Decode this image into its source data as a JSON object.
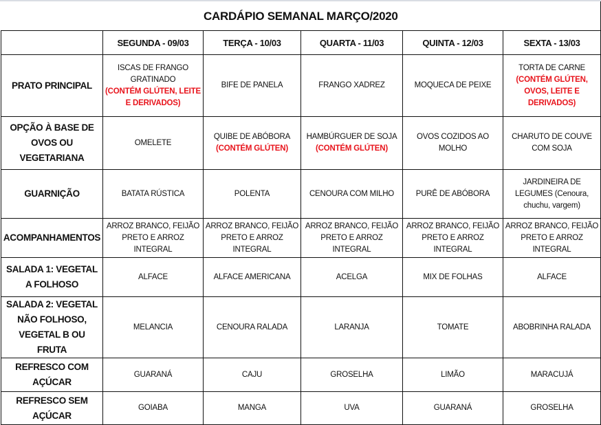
{
  "title": "CARDÁPIO SEMANAL MARÇO/2020",
  "days": [
    "SEGUNDA - 09/03",
    "TERÇA - 10/03",
    "QUARTA - 11/03",
    "QUINTA - 12/03",
    "SEXTA - 13/03"
  ],
  "colors": {
    "allergen_note": "#e8141c",
    "border": "#111111"
  },
  "rows": [
    {
      "label": "PRATO PRINCIPAL",
      "cells": [
        {
          "text": "ISCAS DE FRANGO GRATINADO",
          "note": "(CONTÉM GLÚTEN, LEITE E DERIVADOS)"
        },
        {
          "text": "BIFE DE PANELA"
        },
        {
          "text": "FRANGO XADREZ"
        },
        {
          "text": "MOQUECA DE PEIXE"
        },
        {
          "text": "TORTA DE CARNE",
          "note": "(CONTÉM GLÚTEN, OVOS, LEITE E DERIVADOS)"
        }
      ]
    },
    {
      "label": "OPÇÃO À BASE DE OVOS OU VEGETARIANA",
      "cells": [
        {
          "text": "OMELETE"
        },
        {
          "text": "QUIBE DE ABÓBORA",
          "note": "(CONTÉM GLÚTEN)"
        },
        {
          "text": "HAMBÚRGUER DE SOJA",
          "note": "(CONTÉM GLÚTEN)"
        },
        {
          "text": "OVOS COZIDOS AO MOLHO"
        },
        {
          "text": "CHARUTO DE COUVE COM SOJA"
        }
      ]
    },
    {
      "label": "GUARNIÇÃO",
      "cells": [
        {
          "text": "BATATA RÚSTICA"
        },
        {
          "text": "POLENTA"
        },
        {
          "text": "CENOURA COM MILHO"
        },
        {
          "text": "PURÊ DE ABÓBORA"
        },
        {
          "text": "JARDINEIRA DE LEGUMES (Cenoura, chuchu, vargem)"
        }
      ]
    },
    {
      "label": "ACOMPANHAMENTOS",
      "cells": [
        {
          "text": "ARROZ BRANCO, FEIJÃO PRETO E ARROZ INTEGRAL"
        },
        {
          "text": "ARROZ BRANCO, FEIJÃO PRETO E ARROZ INTEGRAL"
        },
        {
          "text": "ARROZ BRANCO, FEIJÃO PRETO E ARROZ INTEGRAL"
        },
        {
          "text": "ARROZ BRANCO, FEIJÃO PRETO E ARROZ INTEGRAL"
        },
        {
          "text": "ARROZ BRANCO, FEIJÃO PRETO E ARROZ INTEGRAL"
        }
      ]
    },
    {
      "label": "SALADA 1: VEGETAL A FOLHOSO",
      "cells": [
        {
          "text": "ALFACE"
        },
        {
          "text": "ALFACE AMERICANA"
        },
        {
          "text": "ACELGA"
        },
        {
          "text": "MIX DE FOLHAS"
        },
        {
          "text": "ALFACE"
        }
      ]
    },
    {
      "label": "SALADA 2: VEGETAL NÃO FOLHOSO, VEGETAL B OU FRUTA",
      "cells": [
        {
          "text": "MELANCIA"
        },
        {
          "text": "CENOURA RALADA"
        },
        {
          "text": "LARANJA"
        },
        {
          "text": "TOMATE"
        },
        {
          "text": "ABOBRINHA RALADA"
        }
      ]
    },
    {
      "label": "REFRESCO COM AÇÚCAR",
      "cells": [
        {
          "text": "GUARANÁ"
        },
        {
          "text": "CAJU"
        },
        {
          "text": "GROSELHA"
        },
        {
          "text": "LIMÃO"
        },
        {
          "text": "MARACUJÁ"
        }
      ]
    },
    {
      "label": "REFRESCO SEM AÇÚCAR",
      "cells": [
        {
          "text": "GOIABA"
        },
        {
          "text": "MANGA"
        },
        {
          "text": "UVA"
        },
        {
          "text": "GUARANÁ"
        },
        {
          "text": "GROSELHA"
        }
      ]
    }
  ]
}
